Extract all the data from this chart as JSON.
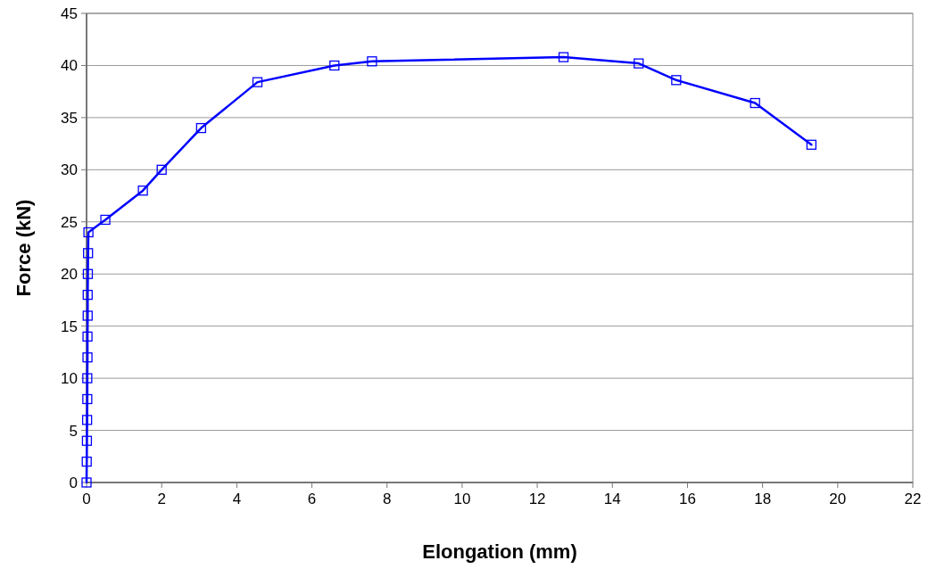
{
  "chart_data": {
    "type": "line",
    "xlabel": "Elongation (mm)",
    "ylabel": "Force (kN)",
    "xlim": [
      0,
      22
    ],
    "xticks": [
      0,
      2,
      4,
      6,
      8,
      10,
      12,
      14,
      16,
      18,
      20,
      22
    ],
    "ylim": [
      0,
      45
    ],
    "yticks": [
      0,
      5,
      10,
      15,
      20,
      25,
      30,
      35,
      40,
      45
    ],
    "grid": "y",
    "marker": "square",
    "line_style": "solid",
    "series": [
      {
        "color": "#0000ff",
        "x": [
          0,
          0.005,
          0.01,
          0.015,
          0.02,
          0.02,
          0.025,
          0.025,
          0.03,
          0.03,
          0.035,
          0.04,
          0.05,
          0.5,
          1.5,
          2,
          3.05,
          4.55,
          6.6,
          7.6,
          12.7,
          14.7,
          15.7,
          17.8,
          19.3
        ],
        "values": [
          0,
          2,
          4,
          6,
          8,
          10,
          12,
          14,
          16,
          18,
          20,
          22,
          24,
          25.2,
          28,
          30,
          34,
          38.4,
          40,
          40.4,
          40.8,
          40.2,
          38.6,
          36.4,
          32.4
        ]
      }
    ]
  }
}
